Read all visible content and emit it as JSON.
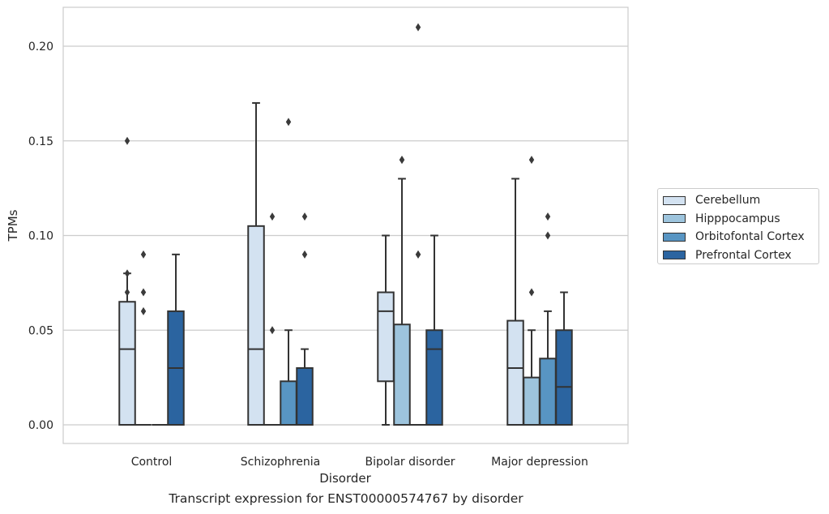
{
  "caption": "Transcript expression for ENST00000574767 by disorder",
  "chart_data": {
    "type": "box",
    "xlabel": "Disorder",
    "ylabel": "TPMs",
    "ylim": [
      -0.01,
      0.221
    ],
    "yticks": [
      "0.00",
      "0.05",
      "0.10",
      "0.15",
      "0.20"
    ],
    "ytick_values": [
      0,
      0.05,
      0.1,
      0.15,
      0.2
    ],
    "grid": true,
    "legend_position": "right-center",
    "categories": [
      "Control",
      "Schizophrenia",
      "Bipolar disorder",
      "Major depression"
    ],
    "series": [
      {
        "name": "Cerebellum",
        "color": "#d3e2f1",
        "boxes": [
          {
            "q1": 0,
            "median": 0.04,
            "q3": 0.065,
            "whisker_low": 0,
            "whisker_high": 0.08,
            "outliers": [
              0.07,
              0.08,
              0.15
            ]
          },
          {
            "q1": 0,
            "median": 0.04,
            "q3": 0.105,
            "whisker_low": 0,
            "whisker_high": 0.17,
            "outliers": []
          },
          {
            "q1": 0.023,
            "median": 0.06,
            "q3": 0.07,
            "whisker_low": 0,
            "whisker_high": 0.1,
            "outliers": []
          },
          {
            "q1": 0,
            "median": 0.03,
            "q3": 0.055,
            "whisker_low": 0,
            "whisker_high": 0.13,
            "outliers": []
          }
        ]
      },
      {
        "name": "Hipppocampus",
        "color": "#9dc4dd",
        "boxes": [
          {
            "q1": 0,
            "median": 0,
            "q3": 0,
            "whisker_low": 0,
            "whisker_high": 0,
            "outliers": [
              0.06,
              0.07,
              0.09
            ]
          },
          {
            "q1": 0,
            "median": 0,
            "q3": 0,
            "whisker_low": 0,
            "whisker_high": 0,
            "outliers": [
              0.05,
              0.11
            ]
          },
          {
            "q1": 0,
            "median": 0,
            "q3": 0.053,
            "whisker_low": 0,
            "whisker_high": 0.13,
            "outliers": [
              0.14,
              0.14
            ]
          },
          {
            "q1": 0,
            "median": 0,
            "q3": 0.025,
            "whisker_low": 0,
            "whisker_high": 0.05,
            "outliers": [
              0.07,
              0.14
            ]
          }
        ]
      },
      {
        "name": "Orbitofontal Cortex",
        "color": "#5895c3",
        "boxes": [
          {
            "q1": 0,
            "median": 0,
            "q3": 0,
            "whisker_low": 0,
            "whisker_high": 0,
            "outliers": []
          },
          {
            "q1": 0,
            "median": 0,
            "q3": 0.023,
            "whisker_low": 0,
            "whisker_high": 0.05,
            "outliers": [
              0.16
            ]
          },
          {
            "q1": 0,
            "median": 0,
            "q3": 0,
            "whisker_low": 0,
            "whisker_high": 0,
            "outliers": [
              0.09,
              0.09,
              0.21
            ]
          },
          {
            "q1": 0,
            "median": 0,
            "q3": 0.035,
            "whisker_low": 0,
            "whisker_high": 0.06,
            "outliers": [
              0.1,
              0.11
            ]
          }
        ]
      },
      {
        "name": "Prefrontal Cortex",
        "color": "#2b64a0",
        "boxes": [
          {
            "q1": 0,
            "median": 0.03,
            "q3": 0.06,
            "whisker_low": 0,
            "whisker_high": 0.09,
            "outliers": []
          },
          {
            "q1": 0,
            "median": 0,
            "q3": 0.03,
            "whisker_low": 0,
            "whisker_high": 0.04,
            "outliers": [
              0.09,
              0.11
            ]
          },
          {
            "q1": 0,
            "median": 0.04,
            "q3": 0.05,
            "whisker_low": 0,
            "whisker_high": 0.1,
            "outliers": []
          },
          {
            "q1": 0,
            "median": 0.02,
            "q3": 0.05,
            "whisker_low": 0,
            "whisker_high": 0.07,
            "outliers": []
          }
        ]
      }
    ]
  }
}
